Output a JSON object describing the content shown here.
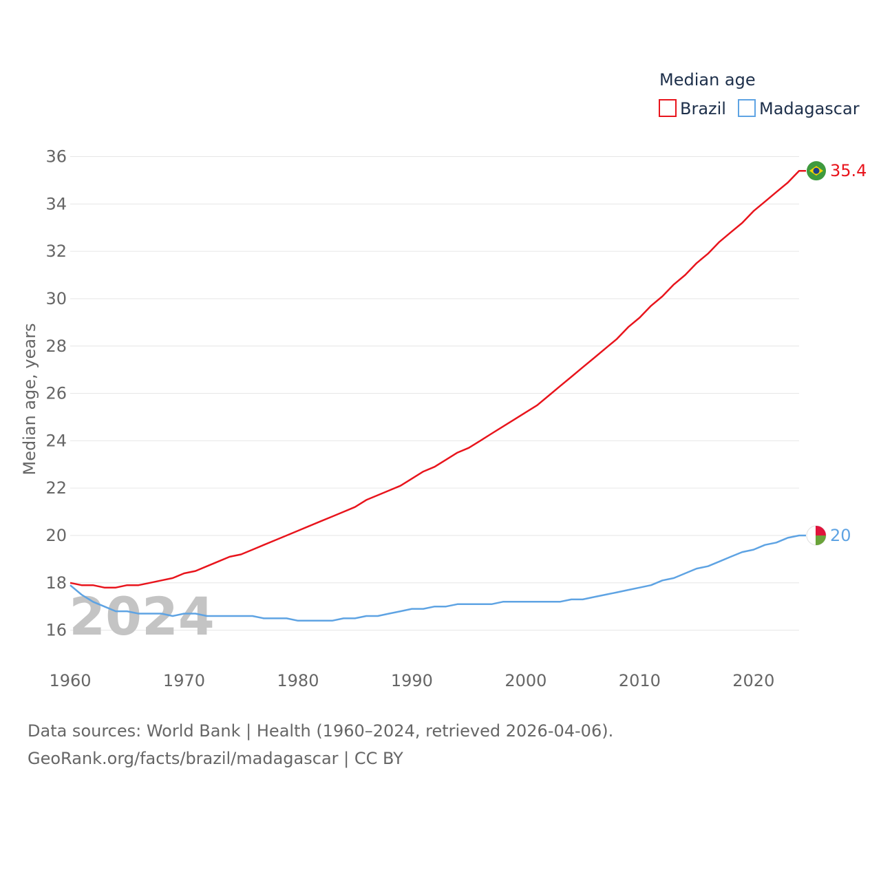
{
  "chart_data": {
    "type": "line",
    "legend_title": "Median age",
    "ylabel": "Median age, years",
    "xlabel": "",
    "ylim": [
      15,
      36.8
    ],
    "xlim": [
      1960,
      2024
    ],
    "y_ticks": [
      16,
      18,
      20,
      22,
      24,
      26,
      28,
      30,
      32,
      34,
      36
    ],
    "x_ticks": [
      1960,
      1970,
      1980,
      1990,
      2000,
      2010,
      2020
    ],
    "year_label": "2024",
    "x": [
      1960,
      1961,
      1962,
      1963,
      1964,
      1965,
      1966,
      1967,
      1968,
      1969,
      1970,
      1971,
      1972,
      1973,
      1974,
      1975,
      1976,
      1977,
      1978,
      1979,
      1980,
      1981,
      1982,
      1983,
      1984,
      1985,
      1986,
      1987,
      1988,
      1989,
      1990,
      1991,
      1992,
      1993,
      1994,
      1995,
      1996,
      1997,
      1998,
      1999,
      2000,
      2001,
      2002,
      2003,
      2004,
      2005,
      2006,
      2007,
      2008,
      2009,
      2010,
      2011,
      2012,
      2013,
      2014,
      2015,
      2016,
      2017,
      2018,
      2019,
      2020,
      2021,
      2022,
      2023,
      2024
    ],
    "series": [
      {
        "name": "Brazil",
        "color": "#e8141c",
        "end_label": "35.4",
        "flag_colors": [
          "#3e9a3e",
          "#f5d400",
          "#1d3f8a"
        ],
        "values": [
          18.0,
          17.9,
          17.9,
          17.8,
          17.8,
          17.9,
          17.9,
          18.0,
          18.1,
          18.2,
          18.4,
          18.5,
          18.7,
          18.9,
          19.1,
          19.2,
          19.4,
          19.6,
          19.8,
          20.0,
          20.2,
          20.4,
          20.6,
          20.8,
          21.0,
          21.2,
          21.5,
          21.7,
          21.9,
          22.1,
          22.4,
          22.7,
          22.9,
          23.2,
          23.5,
          23.7,
          24.0,
          24.3,
          24.6,
          24.9,
          25.2,
          25.5,
          25.9,
          26.3,
          26.7,
          27.1,
          27.5,
          27.9,
          28.3,
          28.8,
          29.2,
          29.7,
          30.1,
          30.6,
          31.0,
          31.5,
          31.9,
          32.4,
          32.8,
          33.2,
          33.7,
          34.1,
          34.5,
          34.9,
          35.4
        ]
      },
      {
        "name": "Madagascar",
        "color": "#5ea3e3",
        "end_label": "20",
        "flag_colors": [
          "#ffffff",
          "#e0143c",
          "#6aa33a"
        ],
        "values": [
          17.9,
          17.5,
          17.2,
          17.0,
          16.8,
          16.8,
          16.7,
          16.7,
          16.7,
          16.6,
          16.7,
          16.7,
          16.6,
          16.6,
          16.6,
          16.6,
          16.6,
          16.5,
          16.5,
          16.5,
          16.4,
          16.4,
          16.4,
          16.4,
          16.5,
          16.5,
          16.6,
          16.6,
          16.7,
          16.8,
          16.9,
          16.9,
          17.0,
          17.0,
          17.1,
          17.1,
          17.1,
          17.1,
          17.2,
          17.2,
          17.2,
          17.2,
          17.2,
          17.2,
          17.3,
          17.3,
          17.4,
          17.5,
          17.6,
          17.7,
          17.8,
          17.9,
          18.1,
          18.2,
          18.4,
          18.6,
          18.7,
          18.9,
          19.1,
          19.3,
          19.4,
          19.6,
          19.7,
          19.9,
          20.0
        ]
      }
    ]
  },
  "footer": {
    "line1": "Data sources: World Bank | Health (1960–2024, retrieved 2026-04-06).",
    "line2": "GeoRank.org/facts/brazil/madagascar | CC BY"
  }
}
